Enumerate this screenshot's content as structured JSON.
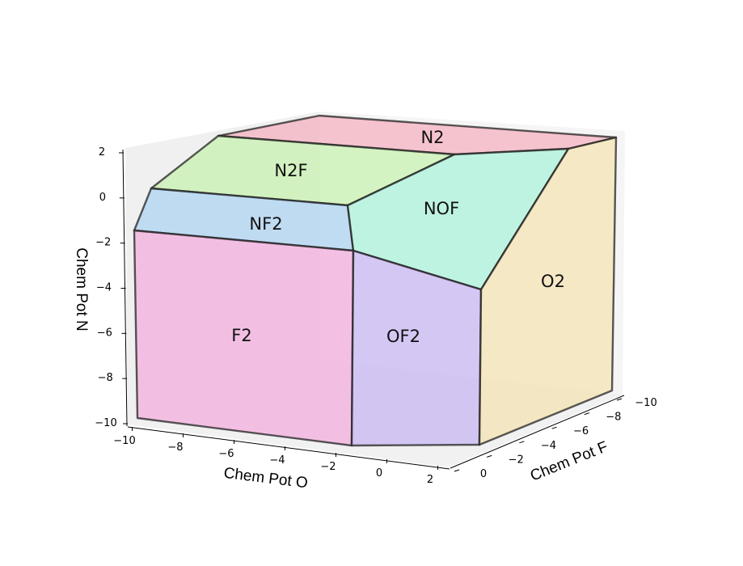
{
  "chart_data": {
    "type": "3d-polyhedron",
    "axes": {
      "x": {
        "label": "Chem Pot O",
        "range": [
          -10,
          2
        ],
        "ticks": [
          "−10",
          "−8",
          "−6",
          "−4",
          "−2",
          "0",
          "2"
        ]
      },
      "y": {
        "label": "Chem Pot F",
        "range": [
          -10,
          0
        ],
        "ticks": [
          "0",
          "−2",
          "−4",
          "−6",
          "−8",
          "−10"
        ]
      },
      "z": {
        "label": "Chem Pot N",
        "range": [
          -10,
          2
        ],
        "ticks": [
          "2",
          "0",
          "−2",
          "−4",
          "−6",
          "−8",
          "−10"
        ]
      }
    },
    "regions": [
      {
        "name": "N2",
        "color": "#f4a7b9"
      },
      {
        "name": "N2F",
        "color": "#c8f2b0"
      },
      {
        "name": "NF2",
        "color": "#a9d1f2"
      },
      {
        "name": "NOF",
        "color": "#a8f2d8"
      },
      {
        "name": "F2",
        "color": "#f2a9dd"
      },
      {
        "name": "OF2",
        "color": "#c3aef2"
      },
      {
        "name": "O2",
        "color": "#f5e1a9"
      }
    ],
    "grid": false
  }
}
